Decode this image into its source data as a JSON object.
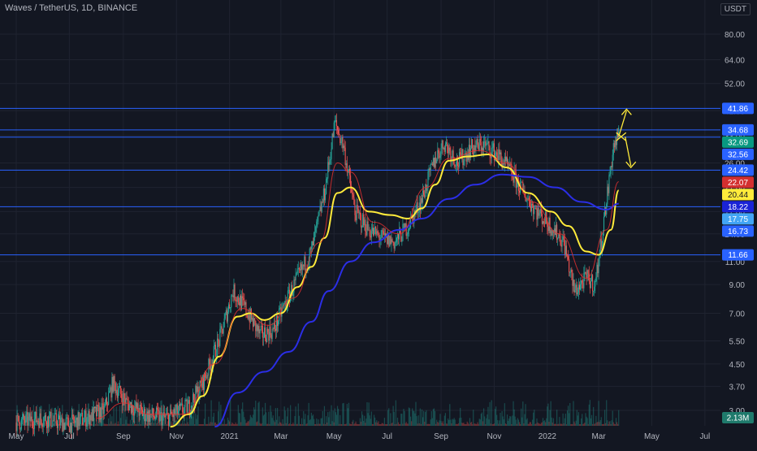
{
  "header": {
    "symbol_title": "Waves / TetherUS, 1D, BINANCE"
  },
  "price_axis": {
    "currency_label": "USDT"
  },
  "colors": {
    "background": "#131722",
    "grid": "#1f2330",
    "axis_text": "#b2b5be",
    "level_line": "#2962ff",
    "candle_up": "#26a69a",
    "candle_down": "#ef5350",
    "ma_fast": "#ffeb3b",
    "ma_slow": "#2b2ee6",
    "ma_short": "#e03030",
    "annotation": "#ffeb3b"
  },
  "chart_data": {
    "type": "candlestick",
    "scale": "log",
    "title": "Waves / TetherUS, 1D, BINANCE",
    "ylim": [
      2.6,
      100
    ],
    "x_range": [
      "2020-05-01",
      "2022-07-31"
    ],
    "y_ticks": [
      80.0,
      64.0,
      52.0,
      41.0,
      33.0,
      26.0,
      21.0,
      17.0,
      14.0,
      11.0,
      9.0,
      7.0,
      5.5,
      4.5,
      3.7,
      3.0
    ],
    "y_tick_labels": [
      "80.00",
      "64.00",
      "52.00",
      "41.00",
      "33.00",
      "26.00",
      "21.00",
      "17.00",
      "14.00",
      "11.00",
      "9.00",
      "7.00",
      "5.50",
      "4.50",
      "3.70",
      "3.00"
    ],
    "x_ticks": [
      {
        "date": "2020-05-01",
        "label": "May"
      },
      {
        "date": "2020-07-01",
        "label": "Jul"
      },
      {
        "date": "2020-09-01",
        "label": "Sep"
      },
      {
        "date": "2020-11-01",
        "label": "Nov"
      },
      {
        "date": "2021-01-01",
        "label": "2021"
      },
      {
        "date": "2021-03-01",
        "label": "Mar"
      },
      {
        "date": "2021-05-01",
        "label": "May"
      },
      {
        "date": "2021-07-01",
        "label": "Jul"
      },
      {
        "date": "2021-09-01",
        "label": "Sep"
      },
      {
        "date": "2021-11-01",
        "label": "Nov"
      },
      {
        "date": "2022-01-01",
        "label": "2022"
      },
      {
        "date": "2022-03-01",
        "label": "Mar"
      },
      {
        "date": "2022-05-01",
        "label": "May"
      },
      {
        "date": "2022-07-01",
        "label": "Jul"
      }
    ],
    "horizontal_levels": [
      41.86,
      34.68,
      32.56,
      24.42,
      17.75,
      11.66
    ],
    "price_badges": [
      {
        "value": 41.86,
        "label": "41.86",
        "color": "#2962ff"
      },
      {
        "value": 34.68,
        "label": "34.68",
        "color": "#2962ff"
      },
      {
        "value": 32.69,
        "label": "32.69",
        "color": "#089981"
      },
      {
        "value": 32.56,
        "label": "32.56",
        "color": "#2962ff"
      },
      {
        "value": 24.42,
        "label": "24.42",
        "color": "#2962ff"
      },
      {
        "value": 22.07,
        "label": "22.07",
        "color": "#d32f2f"
      },
      {
        "value": 20.44,
        "label": "20.44",
        "color": "#ffeb3b"
      },
      {
        "value": 18.22,
        "label": "18.22",
        "color": "#1a23d6"
      },
      {
        "value": 17.75,
        "label": "17.75",
        "color": "#42a5f5"
      },
      {
        "value": 16.73,
        "label": "16.73",
        "color": "#2962ff"
      },
      {
        "value": 11.66,
        "label": "11.66",
        "color": "#2962ff"
      }
    ],
    "volume_badge": "2.13M",
    "price_path": [
      [
        "2020-05-01",
        2.7
      ],
      [
        "2020-06-01",
        2.8
      ],
      [
        "2020-07-01",
        2.65
      ],
      [
        "2020-08-10",
        3.0
      ],
      [
        "2020-08-20",
        3.8
      ],
      [
        "2020-09-05",
        3.2
      ],
      [
        "2020-09-25",
        2.9
      ],
      [
        "2020-10-20",
        2.8
      ],
      [
        "2020-11-15",
        3.1
      ],
      [
        "2020-12-01",
        3.8
      ],
      [
        "2020-12-20",
        5.5
      ],
      [
        "2021-01-05",
        8.5
      ],
      [
        "2021-01-20",
        7.2
      ],
      [
        "2021-02-05",
        5.8
      ],
      [
        "2021-02-20",
        6.0
      ],
      [
        "2021-03-05",
        7.5
      ],
      [
        "2021-03-20",
        9.5
      ],
      [
        "2021-04-05",
        12.0
      ],
      [
        "2021-04-20",
        20.0
      ],
      [
        "2021-05-02",
        37.0
      ],
      [
        "2021-05-12",
        30.0
      ],
      [
        "2021-05-25",
        17.0
      ],
      [
        "2021-06-10",
        14.5
      ],
      [
        "2021-06-25",
        13.5
      ],
      [
        "2021-07-10",
        13.0
      ],
      [
        "2021-07-25",
        15.0
      ],
      [
        "2021-08-10",
        19.0
      ],
      [
        "2021-08-25",
        27.0
      ],
      [
        "2021-09-05",
        31.0
      ],
      [
        "2021-09-20",
        26.0
      ],
      [
        "2021-10-05",
        29.5
      ],
      [
        "2021-10-20",
        30.5
      ],
      [
        "2021-11-05",
        28.0
      ],
      [
        "2021-11-20",
        24.0
      ],
      [
        "2021-12-05",
        20.0
      ],
      [
        "2021-12-20",
        17.0
      ],
      [
        "2022-01-05",
        15.0
      ],
      [
        "2022-01-20",
        13.0
      ],
      [
        "2022-02-01",
        8.5
      ],
      [
        "2022-02-15",
        9.5
      ],
      [
        "2022-02-25",
        9.0
      ],
      [
        "2022-03-05",
        14.0
      ],
      [
        "2022-03-12",
        21.0
      ],
      [
        "2022-03-18",
        30.0
      ],
      [
        "2022-03-24",
        33.0
      ]
    ],
    "series": [
      {
        "name": "",
        "color": "#ffeb3b",
        "points": [
          [
            "2020-10-25",
            2.6
          ],
          [
            "2020-11-15",
            2.9
          ],
          [
            "2020-12-01",
            3.4
          ],
          [
            "2020-12-20",
            4.8
          ],
          [
            "2021-01-10",
            6.8
          ],
          [
            "2021-01-25",
            7.0
          ],
          [
            "2021-02-10",
            6.6
          ],
          [
            "2021-03-01",
            7.0
          ],
          [
            "2021-03-20",
            8.8
          ],
          [
            "2021-04-05",
            10.5
          ],
          [
            "2021-04-20",
            13.5
          ],
          [
            "2021-05-05",
            20.0
          ],
          [
            "2021-05-20",
            21.0
          ],
          [
            "2021-06-10",
            17.0
          ],
          [
            "2021-07-05",
            16.5
          ],
          [
            "2021-07-25",
            16.0
          ],
          [
            "2021-08-10",
            17.5
          ],
          [
            "2021-08-25",
            21.5
          ],
          [
            "2021-09-10",
            26.5
          ],
          [
            "2021-10-01",
            27.5
          ],
          [
            "2021-10-25",
            28.0
          ],
          [
            "2021-11-15",
            25.0
          ],
          [
            "2021-12-10",
            20.0
          ],
          [
            "2022-01-05",
            17.0
          ],
          [
            "2022-01-25",
            15.0
          ],
          [
            "2022-02-15",
            12.0
          ],
          [
            "2022-03-01",
            11.66
          ],
          [
            "2022-03-15",
            14.5
          ],
          [
            "2022-03-24",
            20.44
          ]
        ]
      },
      {
        "name": "",
        "color": "#2b2ee6",
        "points": [
          [
            "2020-12-15",
            2.6
          ],
          [
            "2021-01-10",
            3.5
          ],
          [
            "2021-02-10",
            4.2
          ],
          [
            "2021-03-10",
            5.0
          ],
          [
            "2021-04-05",
            6.5
          ],
          [
            "2021-04-25",
            8.5
          ],
          [
            "2021-05-20",
            11.0
          ],
          [
            "2021-06-15",
            13.0
          ],
          [
            "2021-07-15",
            14.5
          ],
          [
            "2021-08-10",
            16.0
          ],
          [
            "2021-09-10",
            19.0
          ],
          [
            "2021-10-10",
            21.5
          ],
          [
            "2021-11-10",
            23.5
          ],
          [
            "2021-12-10",
            23.0
          ],
          [
            "2022-01-10",
            21.0
          ],
          [
            "2022-02-10",
            18.5
          ],
          [
            "2022-03-10",
            17.3
          ],
          [
            "2022-03-24",
            18.22
          ]
        ]
      },
      {
        "name": "",
        "color": "#e03030",
        "points": [
          [
            "2020-08-01",
            2.8
          ],
          [
            "2020-09-01",
            3.2
          ],
          [
            "2020-10-01",
            2.9
          ],
          [
            "2020-11-10",
            2.9
          ],
          [
            "2020-12-15",
            4.5
          ],
          [
            "2021-01-15",
            7.3
          ],
          [
            "2021-02-15",
            6.3
          ],
          [
            "2021-03-15",
            8.0
          ],
          [
            "2021-04-15",
            13.0
          ],
          [
            "2021-05-05",
            26.0
          ],
          [
            "2021-05-20",
            24.0
          ],
          [
            "2021-06-15",
            15.5
          ],
          [
            "2021-07-15",
            14.0
          ],
          [
            "2021-08-15",
            21.0
          ],
          [
            "2021-09-10",
            27.0
          ],
          [
            "2021-10-15",
            29.0
          ],
          [
            "2021-11-15",
            26.0
          ],
          [
            "2021-12-15",
            18.5
          ],
          [
            "2022-01-15",
            14.0
          ],
          [
            "2022-02-15",
            9.5
          ],
          [
            "2022-03-10",
            14.5
          ],
          [
            "2022-03-24",
            22.07
          ]
        ]
      }
    ]
  }
}
